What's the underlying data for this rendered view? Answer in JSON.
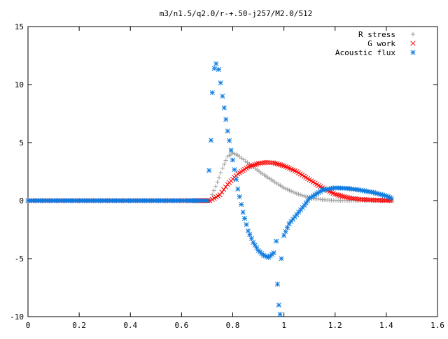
{
  "chart_data": {
    "type": "scatter",
    "title": "m3/n1.5/q2.0/r-+.50-j257/M2.0/512",
    "xlabel": "",
    "ylabel": "",
    "xlim": [
      0,
      1.6
    ],
    "ylim": [
      -10,
      15
    ],
    "x_ticks": [
      "0",
      "0.2",
      "0.4",
      "0.6",
      "0.8",
      "1",
      "1.2",
      "1.4",
      "1.6"
    ],
    "y_ticks": [
      "15",
      "10",
      "5",
      "0",
      "-5",
      "-10"
    ],
    "x_tick_values": [
      0,
      0.2,
      0.4,
      0.6,
      0.8,
      1.0,
      1.2,
      1.4,
      1.6
    ],
    "y_tick_values": [
      15,
      10,
      5,
      0,
      -5,
      -10
    ],
    "grid": false,
    "legend_position": "top-right",
    "series": [
      {
        "name": "R stress",
        "marker": "plus",
        "color": "#a0a0a0",
        "points": [
          [
            0.0,
            0
          ],
          [
            0.2,
            0
          ],
          [
            0.4,
            0
          ],
          [
            0.6,
            0
          ],
          [
            0.71,
            0
          ],
          [
            0.72,
            0.5
          ],
          [
            0.74,
            1.6
          ],
          [
            0.76,
            2.8
          ],
          [
            0.78,
            3.8
          ],
          [
            0.8,
            4.1
          ],
          [
            0.82,
            3.9
          ],
          [
            0.85,
            3.4
          ],
          [
            0.88,
            2.9
          ],
          [
            0.91,
            2.4
          ],
          [
            0.95,
            1.8
          ],
          [
            1.0,
            1.1
          ],
          [
            1.05,
            0.6
          ],
          [
            1.1,
            0.25
          ],
          [
            1.15,
            0.08
          ],
          [
            1.2,
            0.02
          ],
          [
            1.3,
            0
          ],
          [
            1.42,
            0
          ]
        ]
      },
      {
        "name": "G work",
        "marker": "cross",
        "color": "#ff0000",
        "points": [
          [
            0.0,
            0
          ],
          [
            0.2,
            0
          ],
          [
            0.4,
            0
          ],
          [
            0.6,
            0
          ],
          [
            0.71,
            0
          ],
          [
            0.72,
            0.1
          ],
          [
            0.75,
            0.5
          ],
          [
            0.78,
            1.4
          ],
          [
            0.82,
            2.3
          ],
          [
            0.86,
            2.9
          ],
          [
            0.9,
            3.2
          ],
          [
            0.93,
            3.3
          ],
          [
            0.96,
            3.25
          ],
          [
            1.0,
            3.0
          ],
          [
            1.05,
            2.5
          ],
          [
            1.1,
            1.8
          ],
          [
            1.15,
            1.1
          ],
          [
            1.2,
            0.55
          ],
          [
            1.25,
            0.25
          ],
          [
            1.3,
            0.1
          ],
          [
            1.35,
            0.05
          ],
          [
            1.42,
            0
          ]
        ]
      },
      {
        "name": "Acoustic flux",
        "marker": "star",
        "color": "#0f7be0",
        "points": [
          [
            0.0,
            0
          ],
          [
            0.2,
            0
          ],
          [
            0.4,
            0
          ],
          [
            0.6,
            0
          ],
          [
            0.7,
            0
          ],
          [
            0.715,
            5.2
          ],
          [
            0.72,
            9.3
          ],
          [
            0.728,
            11.4
          ],
          [
            0.735,
            11.8
          ],
          [
            0.745,
            11.3
          ],
          [
            0.76,
            9.0
          ],
          [
            0.78,
            6.0
          ],
          [
            0.8,
            3.5
          ],
          [
            0.82,
            1.0
          ],
          [
            0.84,
            -1.0
          ],
          [
            0.86,
            -2.6
          ],
          [
            0.88,
            -3.6
          ],
          [
            0.9,
            -4.3
          ],
          [
            0.92,
            -4.7
          ],
          [
            0.94,
            -4.9
          ],
          [
            0.96,
            -4.5
          ],
          [
            0.97,
            -3.5
          ],
          [
            0.975,
            -7.2
          ],
          [
            0.98,
            -9.0
          ],
          [
            0.985,
            -9.8
          ],
          [
            0.99,
            -5.0
          ],
          [
            1.0,
            -3.0
          ],
          [
            1.02,
            -2.0
          ],
          [
            1.05,
            -1.2
          ],
          [
            1.08,
            -0.4
          ],
          [
            1.1,
            0.2
          ],
          [
            1.15,
            0.9
          ],
          [
            1.2,
            1.1
          ],
          [
            1.25,
            1.05
          ],
          [
            1.3,
            0.9
          ],
          [
            1.35,
            0.7
          ],
          [
            1.4,
            0.4
          ],
          [
            1.42,
            0.2
          ]
        ]
      }
    ]
  }
}
